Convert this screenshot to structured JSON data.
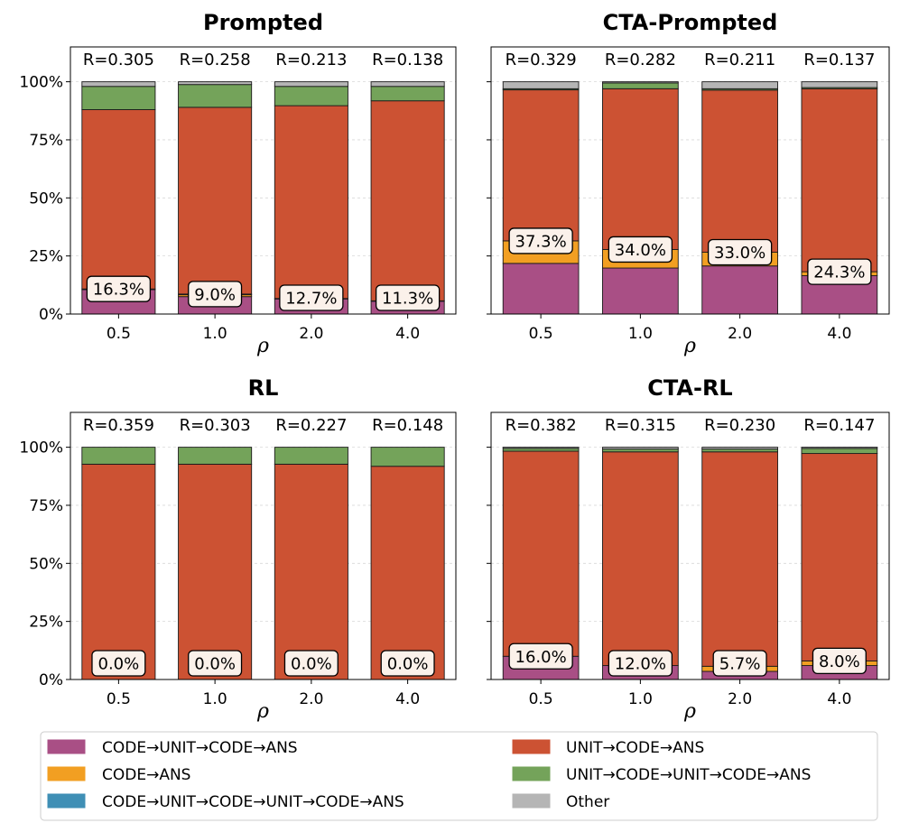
{
  "chart_data": [
    {
      "type": "bar",
      "stacked": true,
      "title": "Prompted",
      "xlabel": "ρ",
      "categories": [
        "0.5",
        "1.0",
        "2.0",
        "4.0"
      ],
      "r_labels": [
        "R=0.305",
        "R=0.258",
        "R=0.213",
        "R=0.138"
      ],
      "annotations": [
        "16.3%",
        "9.0%",
        "12.7%",
        "11.3%"
      ],
      "series": [
        {
          "name": "CODE→UNIT→CODE→ANS",
          "values": [
            10.5,
            7.5,
            6.5,
            5.5
          ]
        },
        {
          "name": "CODE→ANS",
          "values": [
            0.3,
            0.8,
            0.2,
            0.2
          ]
        },
        {
          "name": "CODE→UNIT→CODE→UNIT→CODE→ANS",
          "values": [
            0,
            0.3,
            0,
            0
          ]
        },
        {
          "name": "UNIT→CODE→ANS",
          "values": [
            77.2,
            80.4,
            83.0,
            86.1
          ]
        },
        {
          "name": "UNIT→CODE→UNIT→CODE→ANS",
          "values": [
            10.0,
            9.8,
            8.3,
            6.2
          ]
        },
        {
          "name": "Other",
          "values": [
            2.0,
            1.2,
            2.0,
            2.0
          ]
        }
      ],
      "ylim": [
        0,
        115
      ],
      "yticks": [
        "0%",
        "25%",
        "50%",
        "75%",
        "100%"
      ]
    },
    {
      "type": "bar",
      "stacked": true,
      "title": "CTA-Prompted",
      "xlabel": "ρ",
      "categories": [
        "0.5",
        "1.0",
        "2.0",
        "4.0"
      ],
      "r_labels": [
        "R=0.329",
        "R=0.282",
        "R=0.211",
        "R=0.137"
      ],
      "annotations": [
        "37.3%",
        "34.0%",
        "33.0%",
        "24.3%"
      ],
      "series": [
        {
          "name": "CODE→UNIT→CODE→ANS",
          "values": [
            21.8,
            19.8,
            20.7,
            16.5
          ]
        },
        {
          "name": "CODE→ANS",
          "values": [
            9.7,
            8.0,
            5.9,
            1.7
          ]
        },
        {
          "name": "CODE→UNIT→CODE→UNIT→CODE→ANS",
          "values": [
            0,
            0,
            0,
            0
          ]
        },
        {
          "name": "UNIT→CODE→ANS",
          "values": [
            65.0,
            69.2,
            69.8,
            78.8
          ]
        },
        {
          "name": "UNIT→CODE→UNIT→CODE→ANS",
          "values": [
            0.5,
            2.5,
            0.6,
            0.5
          ]
        },
        {
          "name": "Other",
          "values": [
            3.0,
            0.5,
            3.0,
            2.5
          ]
        }
      ],
      "ylim": [
        0,
        115
      ],
      "yticks": [
        "0%",
        "25%",
        "50%",
        "75%",
        "100%"
      ]
    },
    {
      "type": "bar",
      "stacked": true,
      "title": "RL",
      "xlabel": "ρ",
      "categories": [
        "0.5",
        "1.0",
        "2.0",
        "4.0"
      ],
      "r_labels": [
        "R=0.359",
        "R=0.303",
        "R=0.227",
        "R=0.148"
      ],
      "annotations": [
        "0.0%",
        "0.0%",
        "0.0%",
        "0.0%"
      ],
      "series": [
        {
          "name": "CODE→UNIT→CODE→ANS",
          "values": [
            0,
            0,
            0,
            0
          ]
        },
        {
          "name": "CODE→ANS",
          "values": [
            0,
            0,
            0,
            0
          ]
        },
        {
          "name": "CODE→UNIT→CODE→UNIT→CODE→ANS",
          "values": [
            0,
            0,
            0,
            0
          ]
        },
        {
          "name": "UNIT→CODE→ANS",
          "values": [
            92.7,
            92.7,
            92.7,
            91.8
          ]
        },
        {
          "name": "UNIT→CODE→UNIT→CODE→ANS",
          "values": [
            7.3,
            7.3,
            7.3,
            8.2
          ]
        },
        {
          "name": "Other",
          "values": [
            0,
            0,
            0,
            0
          ]
        }
      ],
      "ylim": [
        0,
        115
      ],
      "yticks": [
        "0%",
        "25%",
        "50%",
        "75%",
        "100%"
      ]
    },
    {
      "type": "bar",
      "stacked": true,
      "title": "CTA-RL",
      "xlabel": "ρ",
      "categories": [
        "0.5",
        "1.0",
        "2.0",
        "4.0"
      ],
      "r_labels": [
        "R=0.382",
        "R=0.315",
        "R=0.230",
        "R=0.147"
      ],
      "annotations": [
        "16.0%",
        "12.0%",
        "5.7%",
        "8.0%"
      ],
      "series": [
        {
          "name": "CODE→UNIT→CODE→ANS",
          "values": [
            10.0,
            6.0,
            3.5,
            6.0
          ]
        },
        {
          "name": "CODE→ANS",
          "values": [
            0,
            0,
            2.2,
            2.0
          ]
        },
        {
          "name": "CODE→UNIT→CODE→UNIT→CODE→ANS",
          "values": [
            0,
            0,
            0,
            0
          ]
        },
        {
          "name": "UNIT→CODE→ANS",
          "values": [
            88.3,
            92.0,
            92.3,
            89.3
          ]
        },
        {
          "name": "UNIT→CODE→UNIT→CODE→ANS",
          "values": [
            1.2,
            1.2,
            1.2,
            2.2
          ]
        },
        {
          "name": "Other",
          "values": [
            0.5,
            0.8,
            0.8,
            0.5
          ]
        }
      ],
      "ylim": [
        0,
        115
      ],
      "yticks": [
        "0%",
        "25%",
        "50%",
        "75%",
        "100%"
      ]
    }
  ],
  "legend": {
    "items": [
      {
        "label": "CODE→UNIT→CODE→ANS",
        "color": "#a94f85"
      },
      {
        "label": "UNIT→CODE→ANS",
        "color": "#cc5233"
      },
      {
        "label": "CODE→ANS",
        "color": "#f29f22"
      },
      {
        "label": "UNIT→CODE→UNIT→CODE→ANS",
        "color": "#74a35a"
      },
      {
        "label": "CODE→UNIT→CODE→UNIT→CODE→ANS",
        "color": "#3f8fb5"
      },
      {
        "label": "Other",
        "color": "#b5b5b5"
      }
    ]
  },
  "colors": {
    "CODE→UNIT→CODE→ANS": "#a94f85",
    "CODE→ANS": "#f29f22",
    "CODE→UNIT→CODE→UNIT→CODE→ANS": "#3f8fb5",
    "UNIT→CODE→ANS": "#cc5233",
    "UNIT→CODE→UNIT→CODE→ANS": "#74a35a",
    "Other": "#b5b5b5",
    "annotation_box": "#fbf1ea"
  }
}
